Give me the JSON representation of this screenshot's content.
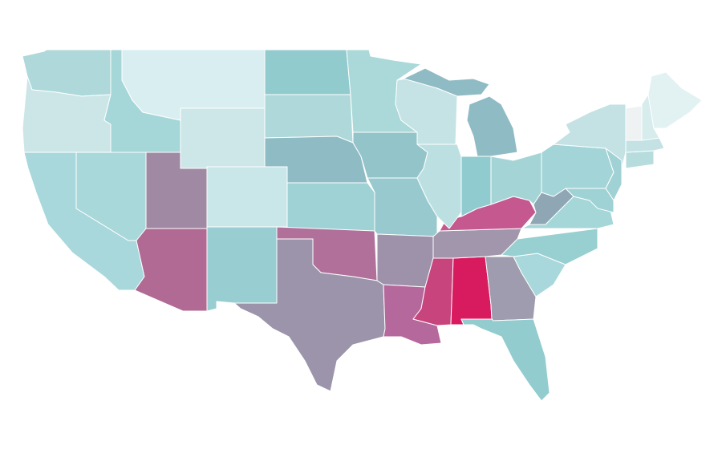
{
  "map": {
    "regions": [
      {
        "color": "#aed8da"
      },
      {
        "color": "#cce6e8"
      },
      {
        "color": "#a8d8db"
      },
      {
        "color": "#a8d8da"
      },
      {
        "color": "#a5d6d8"
      },
      {
        "color": "#d9eef0"
      },
      {
        "color": "#cde7e9"
      },
      {
        "color": "#a08aa3"
      },
      {
        "color": "#b06a94"
      },
      {
        "color": "#c9e6e8"
      },
      {
        "color": "#98cdd1"
      },
      {
        "color": "#92cbcd"
      },
      {
        "color": "#aed8d9"
      },
      {
        "color": "#8fbcc4"
      },
      {
        "color": "#9fd2d5"
      },
      {
        "color": "#b0709a"
      },
      {
        "color": "#9c94ab"
      },
      {
        "color": "#abd8d9"
      },
      {
        "color": "#93c4ca"
      },
      {
        "color": "#98c9cf"
      },
      {
        "color": "#9d92aa"
      },
      {
        "color": "#b5689b"
      },
      {
        "color": "#c8447c"
      },
      {
        "color": "#d81b5f"
      },
      {
        "color": "#9e9cae"
      },
      {
        "color": "#92ccce"
      },
      {
        "color": "#a8d8db"
      },
      {
        "color": "#98cfd1"
      },
      {
        "color": "#a196ab"
      },
      {
        "color": "#c4588f"
      },
      {
        "color": "#bce0e2"
      },
      {
        "color": "#90cbcf"
      },
      {
        "color": "#a5d4d7"
      },
      {
        "color": "#c5e3e5"
      },
      {
        "color": "#8fbbc4"
      },
      {
        "color": "#8fbbc4"
      },
      {
        "color": "#8fa6b4"
      },
      {
        "color": "#a5d6d8"
      },
      {
        "color": "#a3d4d7"
      },
      {
        "color": "#c4e2e4"
      },
      {
        "color": "#a0d2d5"
      },
      {
        "color": "#9fd2d5"
      },
      {
        "color": "#b6dcde"
      },
      {
        "color": "#c4e2e4"
      },
      {
        "color": "#eef2f3"
      },
      {
        "color": "#d6eced"
      },
      {
        "color": "#e2f1f2"
      }
    ]
  }
}
